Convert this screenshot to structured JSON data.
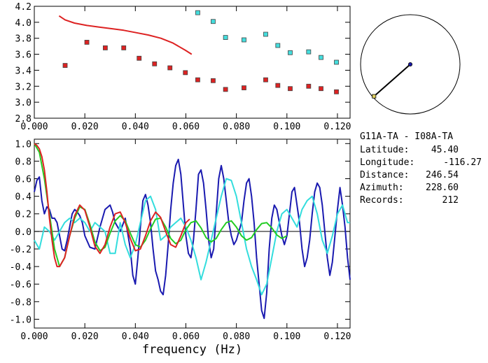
{
  "station_info": {
    "title": "G11A-TA  - I08A-TA",
    "rows": [
      {
        "label": "Latitude:",
        "value": "45.40"
      },
      {
        "label": "Longitude:",
        "value": "-116.27"
      },
      {
        "label": "Distance:",
        "value": "246.54"
      },
      {
        "label": "Azimuth:",
        "value": "228.60"
      },
      {
        "label": "Records:",
        "value": "212"
      }
    ]
  },
  "azimuth_dial": {
    "azimuth_deg": 228.6,
    "center_color": "#1a1aa8",
    "tip_color": "#e0d060"
  },
  "chart_data": [
    {
      "type": "scatter",
      "title": "",
      "xlabel": "",
      "ylabel": "",
      "xlim": [
        0.0,
        0.125
      ],
      "ylim": [
        2.8,
        4.2
      ],
      "x_ticks": [
        "0.000",
        "0.020",
        "0.040",
        "0.060",
        "0.080",
        "0.100",
        "0.120"
      ],
      "y_ticks": [
        "2.8",
        "3.0",
        "3.2",
        "3.4",
        "3.6",
        "3.8",
        "4.0",
        "4.2"
      ],
      "x_tick_values": [
        0,
        0.02,
        0.04,
        0.06,
        0.08,
        0.1,
        0.12
      ],
      "y_tick_values": [
        2.8,
        3.0,
        3.2,
        3.4,
        3.6,
        3.8,
        4.0,
        4.2
      ],
      "series": [
        {
          "type": "scatter",
          "color": "#dd2222",
          "x": [
            0.0122,
            0.0208,
            0.0281,
            0.0354,
            0.0415,
            0.0476,
            0.0537,
            0.0598,
            0.0647,
            0.0708,
            0.0757,
            0.083,
            0.0916,
            0.0964,
            0.1013,
            0.1086,
            0.1135,
            0.1196
          ],
          "y": [
            3.46,
            3.75,
            3.68,
            3.68,
            3.55,
            3.48,
            3.43,
            3.37,
            3.28,
            3.27,
            3.16,
            3.18,
            3.28,
            3.21,
            3.17,
            3.2,
            3.17,
            3.13
          ]
        },
        {
          "type": "scatter",
          "color": "#44dddd",
          "x": [
            0.0647,
            0.0708,
            0.0757,
            0.083,
            0.0916,
            0.0964,
            0.1013,
            0.1086,
            0.1135,
            0.1196
          ],
          "y": [
            4.12,
            4.01,
            3.81,
            3.78,
            3.85,
            3.71,
            3.62,
            3.63,
            3.56,
            3.5
          ]
        },
        {
          "type": "line",
          "color": "#dd2222",
          "x": [
            0.0098,
            0.0122,
            0.0159,
            0.0208,
            0.0257,
            0.0306,
            0.0354,
            0.0403,
            0.0452,
            0.0501,
            0.0549,
            0.0598,
            0.0623
          ],
          "y": [
            4.08,
            4.03,
            3.99,
            3.96,
            3.94,
            3.92,
            3.9,
            3.87,
            3.84,
            3.8,
            3.74,
            3.65,
            3.6
          ]
        }
      ]
    },
    {
      "type": "line",
      "title": "",
      "xlabel": "frequency (Hz)",
      "ylabel": "",
      "xlim": [
        0.0,
        0.125
      ],
      "ylim": [
        -1.1,
        1.05
      ],
      "x_ticks": [
        "0.000",
        "0.020",
        "0.040",
        "0.060",
        "0.080",
        "0.100",
        "0.120"
      ],
      "y_ticks": [
        "-1.0",
        "-0.8",
        "-0.6",
        "-0.4",
        "-0.2",
        "0.0",
        "0.2",
        "0.4",
        "0.6",
        "0.8",
        "1.0"
      ],
      "x_tick_values": [
        0,
        0.02,
        0.04,
        0.06,
        0.08,
        0.1,
        0.12
      ],
      "y_tick_values": [
        -1.0,
        -0.8,
        -0.6,
        -0.4,
        -0.2,
        0.0,
        0.2,
        0.4,
        0.6,
        0.8,
        1.0
      ],
      "zero_line": true,
      "series": [
        {
          "color": "#1a1ab0",
          "x": [
            0.0,
            0.001,
            0.002,
            0.003,
            0.004,
            0.005,
            0.006,
            0.007,
            0.008,
            0.009,
            0.01,
            0.011,
            0.012,
            0.013,
            0.014,
            0.015,
            0.016,
            0.017,
            0.018,
            0.019,
            0.02,
            0.022,
            0.024,
            0.026,
            0.028,
            0.03,
            0.031,
            0.032,
            0.034,
            0.036,
            0.038,
            0.039,
            0.04,
            0.041,
            0.042,
            0.043,
            0.044,
            0.045,
            0.046,
            0.047,
            0.048,
            0.049,
            0.05,
            0.051,
            0.052,
            0.053,
            0.054,
            0.055,
            0.056,
            0.057,
            0.058,
            0.059,
            0.06,
            0.061,
            0.062,
            0.063,
            0.064,
            0.065,
            0.066,
            0.067,
            0.068,
            0.069,
            0.07,
            0.071,
            0.072,
            0.073,
            0.074,
            0.075,
            0.076,
            0.077,
            0.078,
            0.079,
            0.08,
            0.081,
            0.082,
            0.083,
            0.084,
            0.085,
            0.086,
            0.087,
            0.088,
            0.089,
            0.09,
            0.091,
            0.092,
            0.093,
            0.094,
            0.095,
            0.096,
            0.097,
            0.098,
            0.099,
            0.1,
            0.101,
            0.102,
            0.103,
            0.104,
            0.105,
            0.106,
            0.107,
            0.108,
            0.109,
            0.11,
            0.111,
            0.112,
            0.113,
            0.114,
            0.115,
            0.116,
            0.117,
            0.118,
            0.119,
            0.12,
            0.121,
            0.122,
            0.123,
            0.124,
            0.125
          ],
          "y": [
            0.45,
            0.58,
            0.62,
            0.35,
            0.2,
            0.28,
            0.25,
            0.15,
            0.15,
            0.1,
            -0.05,
            -0.2,
            -0.22,
            -0.1,
            0.05,
            0.2,
            0.25,
            0.22,
            0.18,
            0.1,
            -0.05,
            -0.18,
            -0.2,
            0.05,
            0.25,
            0.3,
            0.22,
            0.1,
            0.0,
            0.15,
            -0.2,
            -0.5,
            -0.6,
            -0.3,
            0.05,
            0.35,
            0.42,
            0.3,
            0.1,
            -0.2,
            -0.45,
            -0.55,
            -0.68,
            -0.72,
            -0.5,
            -0.15,
            0.25,
            0.55,
            0.75,
            0.82,
            0.65,
            0.3,
            -0.05,
            -0.25,
            -0.3,
            -0.1,
            0.25,
            0.65,
            0.7,
            0.55,
            0.25,
            -0.1,
            -0.3,
            -0.2,
            0.2,
            0.6,
            0.75,
            0.6,
            0.35,
            0.1,
            -0.05,
            -0.15,
            -0.1,
            0.0,
            0.1,
            0.35,
            0.55,
            0.6,
            0.4,
            0.1,
            -0.3,
            -0.6,
            -0.9,
            -0.99,
            -0.7,
            -0.2,
            0.15,
            0.3,
            0.25,
            0.1,
            -0.05,
            -0.15,
            -0.05,
            0.2,
            0.45,
            0.5,
            0.3,
            0.1,
            -0.2,
            -0.4,
            -0.3,
            -0.1,
            0.2,
            0.45,
            0.55,
            0.5,
            0.3,
            0.0,
            -0.3,
            -0.5,
            -0.35,
            -0.05,
            0.25,
            0.5,
            0.3,
            0.05,
            -0.3,
            -0.55
          ]
        },
        {
          "color": "#33dddd",
          "x": [
            0.0,
            0.002,
            0.004,
            0.006,
            0.008,
            0.01,
            0.012,
            0.014,
            0.016,
            0.018,
            0.02,
            0.022,
            0.024,
            0.026,
            0.028,
            0.03,
            0.032,
            0.034,
            0.036,
            0.038,
            0.04,
            0.042,
            0.044,
            0.046,
            0.048,
            0.05,
            0.052,
            0.054,
            0.056,
            0.058,
            0.06,
            0.062,
            0.064,
            0.066,
            0.068,
            0.07,
            0.072,
            0.074,
            0.076,
            0.078,
            0.08,
            0.082,
            0.084,
            0.086,
            0.088,
            0.09,
            0.092,
            0.094,
            0.096,
            0.098,
            0.1,
            0.102,
            0.104,
            0.106,
            0.108,
            0.11,
            0.112,
            0.114,
            0.116,
            0.118,
            0.12,
            0.122,
            0.124,
            0.125
          ],
          "y": [
            -0.1,
            -0.2,
            0.05,
            0.0,
            -0.1,
            0.0,
            0.1,
            0.15,
            0.1,
            0.15,
            0.1,
            0.0,
            0.1,
            0.05,
            0.0,
            -0.25,
            -0.25,
            0.1,
            -0.15,
            -0.3,
            -0.15,
            0.1,
            0.35,
            0.4,
            0.25,
            -0.1,
            -0.05,
            0.05,
            0.1,
            0.15,
            0.05,
            -0.1,
            -0.3,
            -0.55,
            -0.35,
            -0.1,
            0.15,
            0.4,
            0.6,
            0.58,
            0.4,
            0.1,
            -0.2,
            -0.4,
            -0.55,
            -0.72,
            -0.6,
            -0.3,
            0.0,
            0.2,
            0.25,
            0.15,
            0.05,
            0.25,
            0.35,
            0.4,
            0.2,
            -0.1,
            -0.25,
            -0.05,
            0.2,
            0.3,
            0.1,
            0.1
          ]
        },
        {
          "color": "#22cc22",
          "x": [
            0.0,
            0.002,
            0.004,
            0.006,
            0.008,
            0.01,
            0.012,
            0.014,
            0.016,
            0.018,
            0.02,
            0.022,
            0.024,
            0.026,
            0.028,
            0.03,
            0.032,
            0.034,
            0.036,
            0.038,
            0.04,
            0.042,
            0.044,
            0.046,
            0.048,
            0.05,
            0.052,
            0.054,
            0.056,
            0.058,
            0.06,
            0.062,
            0.064,
            0.066,
            0.068,
            0.07,
            0.072,
            0.074,
            0.076,
            0.078,
            0.08,
            0.082,
            0.084,
            0.086,
            0.088,
            0.09,
            0.092,
            0.094,
            0.096,
            0.098,
            0.1
          ],
          "y": [
            1.0,
            0.9,
            0.6,
            0.2,
            -0.2,
            -0.4,
            -0.3,
            -0.05,
            0.15,
            0.28,
            0.25,
            0.08,
            -0.12,
            -0.22,
            -0.18,
            -0.02,
            0.12,
            0.18,
            0.12,
            -0.02,
            -0.15,
            -0.18,
            -0.1,
            0.03,
            0.14,
            0.15,
            0.05,
            -0.08,
            -0.14,
            -0.1,
            0.02,
            0.1,
            0.12,
            0.04,
            -0.07,
            -0.12,
            -0.08,
            0.02,
            0.1,
            0.12,
            0.05,
            -0.05,
            -0.1,
            -0.07,
            0.02,
            0.09,
            0.1,
            0.04,
            -0.04,
            -0.08,
            -0.05
          ]
        },
        {
          "color": "#dd2222",
          "x": [
            0.0,
            0.001,
            0.002,
            0.003,
            0.004,
            0.005,
            0.006,
            0.007,
            0.008,
            0.009,
            0.01,
            0.012,
            0.014,
            0.016,
            0.018,
            0.02,
            0.022,
            0.024,
            0.026,
            0.028,
            0.03,
            0.032,
            0.034,
            0.036,
            0.038,
            0.04,
            0.042,
            0.044,
            0.046,
            0.048,
            0.05,
            0.052,
            0.054,
            0.056,
            0.058,
            0.06,
            0.0615
          ],
          "y": [
            1.0,
            0.98,
            0.94,
            0.85,
            0.7,
            0.45,
            0.15,
            -0.1,
            -0.3,
            -0.4,
            -0.4,
            -0.3,
            -0.05,
            0.18,
            0.3,
            0.24,
            0.05,
            -0.17,
            -0.25,
            -0.15,
            0.05,
            0.2,
            0.22,
            0.1,
            -0.08,
            -0.22,
            -0.2,
            -0.05,
            0.12,
            0.22,
            0.16,
            0.0,
            -0.15,
            -0.18,
            -0.05,
            0.1,
            0.14
          ]
        }
      ]
    }
  ]
}
